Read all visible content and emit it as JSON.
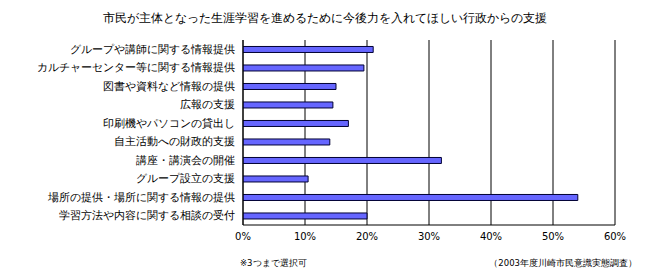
{
  "chart_data": {
    "type": "bar",
    "orientation": "horizontal",
    "title": "市民が主体となった生涯学習を進めるために今後力を入れてほしい行政からの支援",
    "categories": [
      "グループや講師に関する情報提供",
      "カルチャーセンター等に関する情報提供",
      "図書や資料など情報の提供",
      "広報の支援",
      "印刷機やパソコンの貸出し",
      "自主活動への財政的支援",
      "講座・講演会の開催",
      "グループ設立の支援",
      "場所の提供・場所に関する情報の提供",
      "学習方法や内容に関する相談の受付"
    ],
    "values": [
      21,
      19.5,
      15,
      14.5,
      17,
      14,
      32,
      10.5,
      54,
      20
    ],
    "color": "#6666ff",
    "xlim": [
      0,
      60
    ],
    "xticks": [
      {
        "value": 0,
        "label": "0%"
      },
      {
        "value": 10,
        "label": "10%"
      },
      {
        "value": 20,
        "label": "20%"
      },
      {
        "value": 30,
        "label": "30%"
      },
      {
        "value": 40,
        "label": "40%"
      },
      {
        "value": 50,
        "label": "50%"
      },
      {
        "value": 60,
        "label": "60%"
      }
    ],
    "grid": true,
    "annotations": [
      "※3つまで選択可",
      "（2003年度川崎市民意識実態調査）"
    ]
  }
}
